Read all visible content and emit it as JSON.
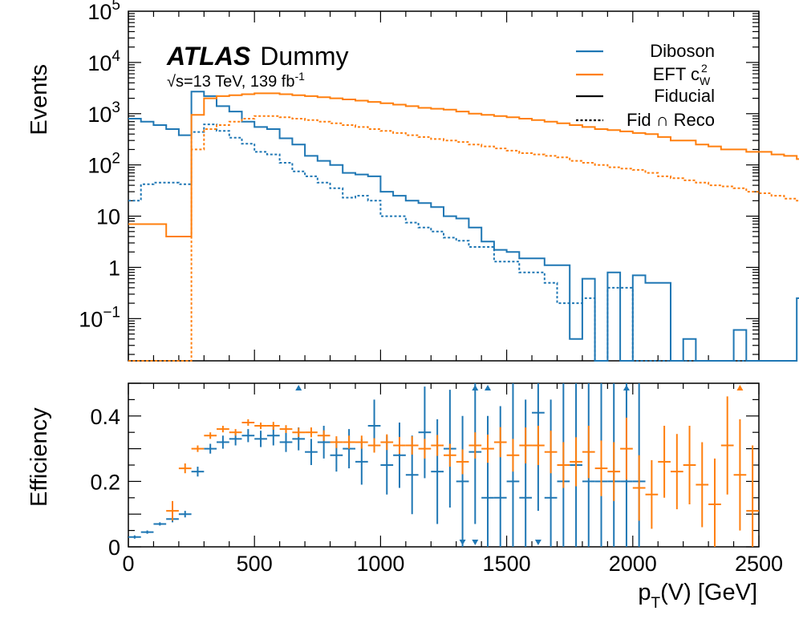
{
  "colors": {
    "diboson": "#1f77b4",
    "eft": "#ff7f0e",
    "black": "#000000"
  },
  "labels": {
    "atlas": "ATLAS",
    "dummy": "Dummy",
    "energy": "√s=13 TeV, 139 fb",
    "energy_sup": "-1"
  },
  "legend": {
    "diboson": "Diboson",
    "eft": "EFT c",
    "eft_sup": "2",
    "eft_sub": "W",
    "fiducial": "Fiducial",
    "fidreco": "Fid ∩ Reco"
  },
  "chart_data": [
    {
      "type": "line",
      "panel": "top",
      "ylabel": "Events",
      "yscale": "log",
      "xlim": [
        0,
        2500
      ],
      "ylim": [
        0.015,
        100000
      ],
      "yticks": [
        {
          "v": 100000,
          "base": "10",
          "exp": "5"
        },
        {
          "v": 10000,
          "base": "10",
          "exp": "4"
        },
        {
          "v": 1000,
          "base": "10",
          "exp": "3"
        },
        {
          "v": 100,
          "base": "10",
          "exp": "2"
        },
        {
          "v": 10,
          "base": "10",
          "exp": ""
        },
        {
          "v": 1,
          "base": "1",
          "exp": ""
        },
        {
          "v": 0.1,
          "base": "10",
          "exp": "−1"
        }
      ],
      "bin_width": 50,
      "series": [
        {
          "name": "Diboson Fiducial",
          "values": [
            800,
            700,
            600,
            500,
            380,
            2700,
            2200,
            1400,
            1100,
            700,
            550,
            500,
            330,
            250,
            150,
            120,
            100,
            70,
            65,
            60,
            30,
            25,
            20,
            18,
            15,
            10,
            9,
            6,
            3.2,
            2.2,
            2,
            1.5,
            1.5,
            1.1,
            1.1,
            0.04,
            0.6,
            0.015,
            0.8,
            0.015,
            0.7,
            0.5,
            0.5,
            0.015,
            0.04,
            0.015,
            0.015,
            0.015,
            0.06,
            0.015,
            0.015,
            0.015,
            0.015,
            0.25,
            0.015,
            0.015,
            0.015,
            0.015,
            0.015,
            0.015
          ]
        },
        {
          "name": "Diboson Fid ∩ Reco",
          "values": [
            20,
            42,
            45,
            45,
            42,
            440,
            620,
            460,
            340,
            260,
            180,
            160,
            110,
            75,
            60,
            45,
            35,
            23,
            25,
            20,
            10,
            10,
            7.5,
            6,
            5,
            3.8,
            3.3,
            2.5,
            2.5,
            1.3,
            1.3,
            0.8,
            0.8,
            0.5,
            0.2,
            0.2,
            0.25,
            0.015,
            0.4,
            0.4,
            0.015,
            0.015,
            0.015,
            0.015,
            0.015,
            0.015,
            0.015,
            0.015,
            0.015,
            0.015,
            0.015,
            0.015,
            0.015,
            0.015,
            0.015,
            0.015,
            0.015,
            0.015,
            0.015,
            0.015
          ]
        },
        {
          "name": "EFT Fiducial",
          "values": [
            7,
            7,
            7,
            4,
            4,
            950,
            2000,
            2200,
            2300,
            2400,
            2500,
            2500,
            2400,
            2300,
            2200,
            2100,
            2000,
            1900,
            1800,
            1700,
            1600,
            1500,
            1400,
            1300,
            1250,
            1200,
            1100,
            1000,
            950,
            900,
            850,
            800,
            750,
            700,
            650,
            600,
            550,
            500,
            480,
            450,
            420,
            400,
            350,
            300,
            300,
            250,
            230,
            200,
            200,
            180,
            180,
            160,
            150,
            130,
            120,
            110,
            100,
            85,
            80,
            70
          ]
        },
        {
          "name": "EFT Fid ∩ Reco",
          "values": [
            0.015,
            0.015,
            0.015,
            0.015,
            0.015,
            200,
            500,
            600,
            700,
            800,
            900,
            900,
            850,
            800,
            750,
            700,
            650,
            600,
            550,
            500,
            460,
            420,
            380,
            350,
            320,
            300,
            280,
            250,
            230,
            210,
            190,
            170,
            160,
            150,
            140,
            120,
            110,
            100,
            90,
            85,
            80,
            70,
            60,
            55,
            50,
            45,
            40,
            38,
            35,
            30,
            28,
            25,
            22,
            20,
            18,
            15,
            14,
            12,
            10,
            9
          ]
        }
      ]
    },
    {
      "type": "scatter",
      "panel": "bottom",
      "xlabel": "p",
      "xlabel_sub": "T",
      "xlabel_rest": "(V) [GeV]",
      "ylabel": "Efficiency",
      "xlim": [
        0,
        2500
      ],
      "ylim": [
        0,
        0.5
      ],
      "xticks": [
        0,
        500,
        1000,
        1500,
        2000,
        2500
      ],
      "yticks": [
        0,
        0.2,
        0.4
      ],
      "bin_width": 50,
      "series": [
        {
          "name": "Diboson",
          "x": [
            25,
            75,
            125,
            175,
            225,
            275,
            325,
            375,
            425,
            475,
            525,
            575,
            625,
            675,
            725,
            775,
            825,
            875,
            925,
            975,
            1025,
            1075,
            1125,
            1175,
            1225,
            1275,
            1325,
            1375,
            1425,
            1475,
            1525,
            1575,
            1625,
            1675,
            1725,
            1775,
            1825,
            1875,
            1925,
            1975,
            2025
          ],
          "y": [
            0.03,
            0.045,
            0.07,
            0.085,
            0.1,
            0.23,
            0.3,
            0.32,
            0.33,
            0.34,
            0.33,
            0.34,
            0.32,
            0.33,
            0.29,
            0.32,
            0.28,
            0.3,
            0.26,
            0.37,
            0.25,
            0.28,
            0.22,
            0.35,
            0.23,
            0.3,
            0.2,
            0.29,
            0.15,
            0.15,
            0.2,
            0.15,
            0.41,
            0.15,
            0.2,
            0.25,
            0.2,
            0.2,
            0.2,
            0.2,
            0.2
          ],
          "err": [
            0.005,
            0.005,
            0.005,
            0.01,
            0.01,
            0.015,
            0.015,
            0.02,
            0.02,
            0.02,
            0.025,
            0.03,
            0.03,
            0.035,
            0.04,
            0.05,
            0.05,
            0.06,
            0.07,
            0.08,
            0.09,
            0.1,
            0.12,
            0.14,
            0.16,
            0.18,
            0.2,
            0.22,
            0.25,
            0.28,
            0.3,
            0.3,
            0.3,
            0.3,
            0.3,
            0.3,
            0.3,
            0.3,
            0.3,
            0.3,
            0.3
          ]
        },
        {
          "name": "EFT",
          "x": [
            175,
            225,
            275,
            325,
            375,
            425,
            475,
            525,
            575,
            625,
            675,
            725,
            775,
            825,
            875,
            925,
            975,
            1025,
            1075,
            1125,
            1175,
            1225,
            1275,
            1325,
            1375,
            1425,
            1475,
            1525,
            1575,
            1625,
            1675,
            1725,
            1775,
            1825,
            1875,
            1925,
            1975,
            2025,
            2075,
            2125,
            2175,
            2225,
            2275,
            2325,
            2375,
            2425,
            2475
          ],
          "y": [
            0.11,
            0.24,
            0.3,
            0.34,
            0.36,
            0.35,
            0.38,
            0.37,
            0.37,
            0.36,
            0.35,
            0.35,
            0.34,
            0.32,
            0.32,
            0.32,
            0.31,
            0.32,
            0.31,
            0.31,
            0.3,
            0.31,
            0.28,
            0.26,
            0.31,
            0.3,
            0.32,
            0.28,
            0.31,
            0.31,
            0.29,
            0.25,
            0.26,
            0.29,
            0.24,
            0.23,
            0.3,
            0.18,
            0.16,
            0.26,
            0.23,
            0.25,
            0.19,
            0.13,
            0.31,
            0.22,
            0.11
          ],
          "err": [
            0.03,
            0.015,
            0.01,
            0.01,
            0.01,
            0.01,
            0.01,
            0.01,
            0.012,
            0.012,
            0.014,
            0.015,
            0.016,
            0.018,
            0.02,
            0.02,
            0.022,
            0.024,
            0.026,
            0.028,
            0.03,
            0.032,
            0.035,
            0.038,
            0.04,
            0.043,
            0.046,
            0.05,
            0.055,
            0.06,
            0.065,
            0.07,
            0.075,
            0.08,
            0.085,
            0.09,
            0.095,
            0.1,
            0.105,
            0.11,
            0.115,
            0.12,
            0.13,
            0.14,
            0.15,
            0.17,
            0.2
          ]
        }
      ],
      "markers_top": [
        {
          "x": 675,
          "series": "Diboson"
        },
        {
          "x": 1375,
          "series": "Diboson"
        },
        {
          "x": 1425,
          "series": "Diboson"
        },
        {
          "x": 1975,
          "series": "Diboson"
        },
        {
          "x": 2425,
          "series": "EFT"
        }
      ],
      "markers_bottom": [
        {
          "x": 1325,
          "series": "Diboson"
        },
        {
          "x": 1375,
          "series": "Diboson"
        },
        {
          "x": 1625,
          "series": "Diboson"
        }
      ]
    }
  ]
}
